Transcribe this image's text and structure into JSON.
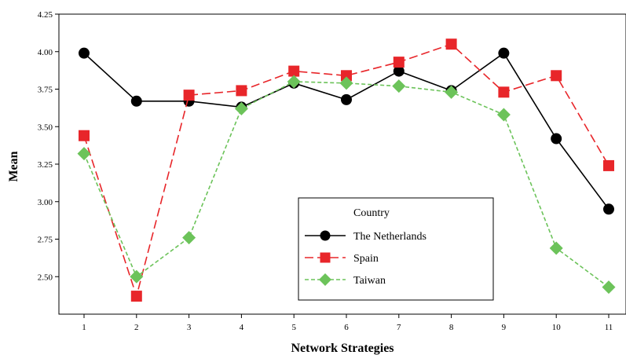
{
  "chart_data": {
    "type": "line",
    "xlabel": "Network Strategies",
    "ylabel": "Mean",
    "x": [
      1,
      2,
      3,
      4,
      5,
      6,
      7,
      8,
      9,
      10,
      11
    ],
    "ylim": [
      2.25,
      4.25
    ],
    "yticks": [
      "2.50",
      "2.75",
      "3.00",
      "3.25",
      "3.50",
      "3.75",
      "4.00",
      "4.25"
    ],
    "grid": false,
    "legend": {
      "title": "Country",
      "placement": "bottom-center"
    },
    "series": [
      {
        "name": "The Netherlands",
        "color": "#000000",
        "marker": "circle",
        "line": "solid",
        "values": [
          3.99,
          3.67,
          3.67,
          3.63,
          3.79,
          3.68,
          3.87,
          3.74,
          3.99,
          3.42,
          2.95
        ]
      },
      {
        "name": "Spain",
        "color": "#e8262a",
        "marker": "square",
        "line": "dashed",
        "values": [
          3.44,
          2.37,
          3.71,
          3.74,
          3.87,
          3.84,
          3.93,
          4.05,
          3.73,
          3.84,
          3.24
        ]
      },
      {
        "name": "Taiwan",
        "color": "#6cc35a",
        "marker": "diamond",
        "line": "dotted",
        "values": [
          3.32,
          2.5,
          2.76,
          3.62,
          3.8,
          3.79,
          3.77,
          3.73,
          3.58,
          2.69,
          2.43
        ]
      }
    ]
  }
}
